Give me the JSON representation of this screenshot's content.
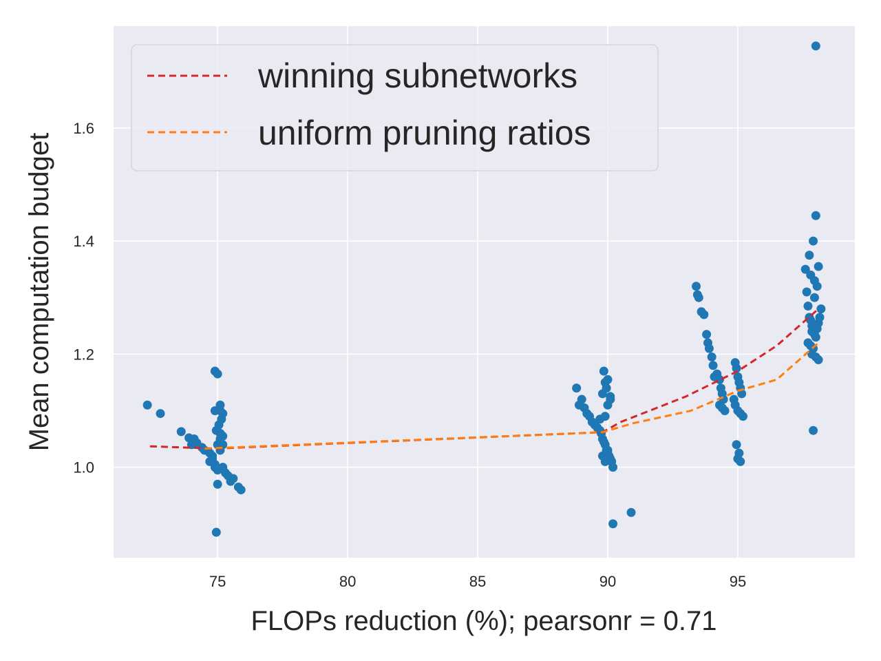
{
  "chart_data": {
    "type": "scatter",
    "xlabel": "FLOPs reduction (%); pearsonr = 0.71",
    "ylabel": "Mean computation budget",
    "xlim": [
      71,
      99.5
    ],
    "ylim": [
      0.84,
      1.78
    ],
    "xticks": [
      75,
      80,
      85,
      90,
      95
    ],
    "yticks": [
      1.0,
      1.2,
      1.4,
      1.6
    ],
    "grid": true,
    "legend_position": "top-left",
    "colors": {
      "background": "#eaeaf2",
      "grid": "#ffffff",
      "scatter": "#1f77b4",
      "winning": "#d62728",
      "uniform": "#ff7f0e"
    },
    "series": [
      {
        "name": "winning subnetworks",
        "style": "dashed-line",
        "x": [
          72.4,
          74.9,
          89.8,
          90.5,
          93.0,
          95.0,
          96.5,
          98.1
        ],
        "y": [
          1.037,
          1.033,
          1.062,
          1.08,
          1.125,
          1.17,
          1.215,
          1.28
        ]
      },
      {
        "name": "uniform pruning ratios",
        "style": "dashed-line",
        "x": [
          74.5,
          89.8,
          91.0,
          93.2,
          95.0,
          96.5,
          98.1
        ],
        "y": [
          1.033,
          1.062,
          1.078,
          1.1,
          1.135,
          1.155,
          1.22
        ]
      }
    ],
    "scatter": {
      "x": [
        72.3,
        72.8,
        73.6,
        73.9,
        74.1,
        74.0,
        74.2,
        74.4,
        74.5,
        74.7,
        74.7,
        74.8,
        74.8,
        74.9,
        74.9,
        75.0,
        75.0,
        75.1,
        75.1,
        75.2,
        75.2,
        75.3,
        75.4,
        75.5,
        75.6,
        75.8,
        75.9,
        74.9,
        75.0,
        75.1,
        75.15,
        75.2,
        75.05,
        74.95,
        75.1,
        75.2,
        75.0,
        74.95,
        75.1,
        74.9,
        88.8,
        88.9,
        89.0,
        89.1,
        89.2,
        89.3,
        89.4,
        89.5,
        89.6,
        89.7,
        89.75,
        89.8,
        89.85,
        89.9,
        89.95,
        90.0,
        90.05,
        90.1,
        90.15,
        90.2,
        89.85,
        89.9,
        89.95,
        90.0,
        90.1,
        89.8,
        89.7,
        89.9,
        90.0,
        90.1,
        89.9,
        89.8,
        90.0,
        90.2,
        90.9,
        93.4,
        93.45,
        93.5,
        93.6,
        93.7,
        93.8,
        93.85,
        93.9,
        94.0,
        94.05,
        94.1,
        94.2,
        94.3,
        94.35,
        94.4,
        94.45,
        94.3,
        94.4,
        94.5,
        94.9,
        94.95,
        95.0,
        95.05,
        95.1,
        95.15,
        94.85,
        94.9,
        95.0,
        95.1,
        95.2,
        94.95,
        95.05,
        95.0,
        95.1,
        97.6,
        97.65,
        97.7,
        97.75,
        97.8,
        97.85,
        97.9,
        97.95,
        98.0,
        98.05,
        98.1,
        98.15,
        98.2,
        97.7,
        97.8,
        97.9,
        98.0,
        98.1,
        97.85,
        97.95,
        98.05,
        97.75,
        97.9,
        98.0,
        98.1,
        97.8,
        97.95,
        98.0,
        97.9,
        97.85
      ],
      "y": [
        1.11,
        1.095,
        1.063,
        1.052,
        1.05,
        1.04,
        1.043,
        1.035,
        1.03,
        1.025,
        1.01,
        1.02,
        1.015,
        1.0,
        1.005,
        0.995,
        1.04,
        1.06,
        1.05,
        1.055,
        1.04,
        0.99,
        0.985,
        0.975,
        0.98,
        0.965,
        0.96,
        1.17,
        1.165,
        1.11,
        1.085,
        1.095,
        1.075,
        1.065,
        1.03,
        1.0,
        0.97,
        0.885,
        1.1,
        1.1,
        1.14,
        1.11,
        1.12,
        1.105,
        1.095,
        1.09,
        1.08,
        1.075,
        1.07,
        1.065,
        1.06,
        1.05,
        1.045,
        1.04,
        1.03,
        1.025,
        1.02,
        1.015,
        1.01,
        1.0,
        1.17,
        1.15,
        1.14,
        1.155,
        1.125,
        1.13,
        1.085,
        1.09,
        1.11,
        1.12,
        1.01,
        1.02,
        1.03,
        0.9,
        0.92,
        1.32,
        1.305,
        1.3,
        1.275,
        1.27,
        1.235,
        1.22,
        1.21,
        1.195,
        1.18,
        1.16,
        1.165,
        1.155,
        1.14,
        1.13,
        1.12,
        1.11,
        1.105,
        1.1,
        1.185,
        1.175,
        1.16,
        1.15,
        1.14,
        1.13,
        1.12,
        1.11,
        1.1,
        1.095,
        1.09,
        1.04,
        1.025,
        1.015,
        1.01,
        1.35,
        1.31,
        1.285,
        1.265,
        1.26,
        1.25,
        1.24,
        1.235,
        1.23,
        1.245,
        1.255,
        1.265,
        1.28,
        1.22,
        1.215,
        1.21,
        1.195,
        1.19,
        1.2,
        1.3,
        1.32,
        1.375,
        1.4,
        1.445,
        1.355,
        1.34,
        1.33,
        1.745,
        1.065,
        1.24
      ]
    }
  }
}
